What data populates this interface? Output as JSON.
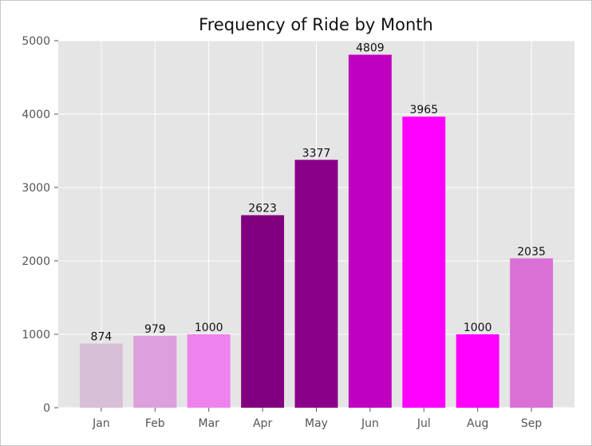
{
  "chart_data": {
    "type": "bar",
    "title": "Frequency of Ride by Month",
    "xlabel": "",
    "ylabel": "",
    "categories": [
      "Jan",
      "Feb",
      "Mar",
      "Apr",
      "May",
      "Jun",
      "Jul",
      "Aug",
      "Sep"
    ],
    "values": [
      874,
      979,
      1000,
      2623,
      3377,
      4809,
      3965,
      1000,
      2035
    ],
    "data_labels": [
      "874",
      "979",
      "1000",
      "2623",
      "3377",
      "4809",
      "3965",
      "1000",
      "2035"
    ],
    "ylim": [
      0,
      5000
    ],
    "yticks": [
      0,
      1000,
      2000,
      3000,
      4000,
      5000
    ],
    "ytick_labels": [
      "0",
      "1000",
      "2000",
      "3000",
      "4000",
      "5000"
    ],
    "bar_colors": [
      "#d8bfd8",
      "#dda0dd",
      "#ee82ee",
      "#800080",
      "#8b008b",
      "#c000c0",
      "#ff00ff",
      "#ff00ff",
      "#da70d6"
    ],
    "grid": true,
    "legend": "none",
    "style": {
      "plot_background": "#e5e5e5",
      "grid_color": "#ffffff"
    }
  }
}
